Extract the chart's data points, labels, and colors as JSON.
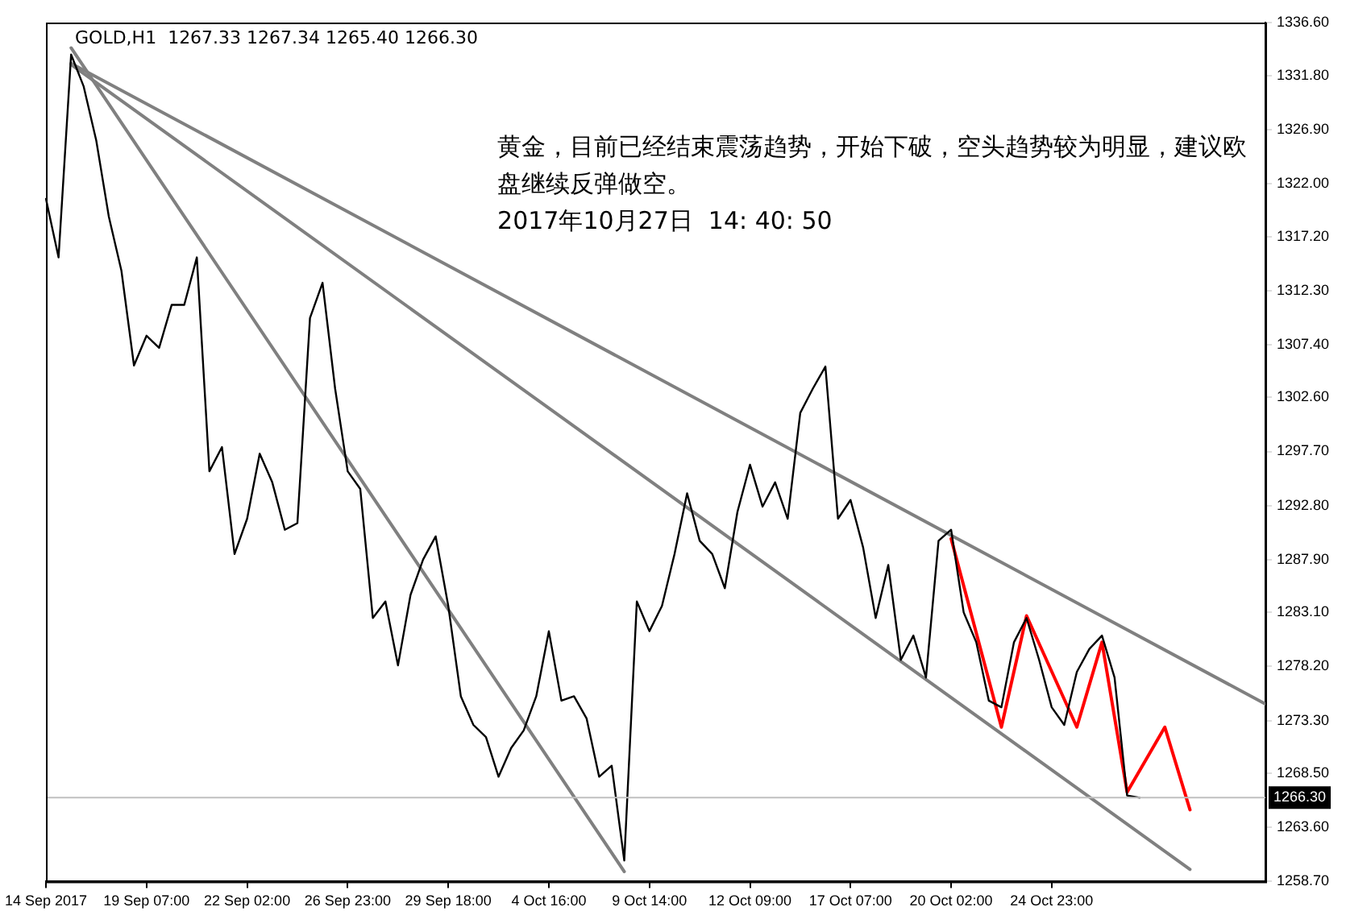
{
  "chart_data": {
    "type": "line",
    "title": "GOLD,H1  1267.33 1267.34 1265.40 1266.30",
    "annotations": [
      "黄金，目前已经结束震荡趋势，开始下破，空头趋势较为明显，建议欧盘继续反弹做空。",
      "2017年10月27日  14: 40: 50"
    ],
    "categories": [
      "14 Sep 2017",
      null,
      null,
      null,
      null,
      null,
      null,
      null,
      "19 Sep 07:00",
      null,
      null,
      null,
      null,
      null,
      null,
      null,
      "22 Sep 02:00",
      null,
      null,
      null,
      null,
      null,
      null,
      null,
      "26 Sep 23:00",
      null,
      null,
      null,
      null,
      null,
      null,
      null,
      "29 Sep 18:00",
      null,
      null,
      null,
      null,
      null,
      null,
      null,
      "4 Oct 16:00",
      null,
      null,
      null,
      null,
      null,
      null,
      null,
      "9 Oct 14:00",
      null,
      null,
      null,
      null,
      null,
      null,
      null,
      "12 Oct 09:00",
      null,
      null,
      null,
      null,
      null,
      null,
      null,
      "17 Oct 07:00",
      null,
      null,
      null,
      null,
      null,
      null,
      null,
      "20 Oct 02:00",
      null,
      null,
      null,
      null,
      null,
      null,
      null,
      "24 Oct 23:00",
      null,
      null,
      null,
      null,
      null,
      null,
      null,
      null,
      null,
      null,
      null,
      null,
      null,
      null,
      null,
      null,
      null
    ],
    "ylim": [
      1258.7,
      1336.6
    ],
    "yticks": [
      {
        "value": 1258.7,
        "label": "1258.70"
      },
      {
        "value": 1263.6,
        "label": "1263.60"
      },
      {
        "value": 1268.5,
        "label": "1268.50"
      },
      {
        "value": 1273.3,
        "label": "1273.30"
      },
      {
        "value": 1278.2,
        "label": "1278.20"
      },
      {
        "value": 1283.1,
        "label": "1283.10"
      },
      {
        "value": 1287.9,
        "label": "1287.90"
      },
      {
        "value": 1292.8,
        "label": "1292.80"
      },
      {
        "value": 1297.7,
        "label": "1297.70"
      },
      {
        "value": 1302.6,
        "label": "1302.60"
      },
      {
        "value": 1307.4,
        "label": "1307.40"
      },
      {
        "value": 1312.3,
        "label": "1312.30"
      },
      {
        "value": 1317.2,
        "label": "1317.20"
      },
      {
        "value": 1322.0,
        "label": "1322.00"
      },
      {
        "value": 1326.9,
        "label": "1326.90"
      },
      {
        "value": 1331.8,
        "label": "1331.80"
      },
      {
        "value": 1336.6,
        "label": "1336.60"
      }
    ],
    "grid": false,
    "legend": false,
    "ref_lines": [
      {
        "axis": "y",
        "value": 1266.3,
        "label": "1266.30",
        "color": "#c0c0c0"
      }
    ],
    "series": [
      {
        "color": "#000000",
        "values": [
          1320.6,
          1315.3,
          1333.7,
          1330.8,
          1325.9,
          1319.0,
          1314.1,
          1305.5,
          1308.2,
          1307.1,
          1311.0,
          1311.0,
          1315.3,
          1295.9,
          1298.1,
          1288.4,
          1291.6,
          1297.5,
          1294.9,
          1290.6,
          1291.2,
          1309.8,
          1313.0,
          1303.4,
          1295.9,
          1294.3,
          1282.6,
          1284.1,
          1278.3,
          1284.7,
          1287.9,
          1290.0,
          1283.7,
          1275.5,
          1272.9,
          1271.8,
          1268.2,
          1270.8,
          1272.4,
          1275.5,
          1281.4,
          1275.1,
          1275.5,
          1273.5,
          1268.2,
          1269.2,
          1260.6,
          1284.1,
          1281.4,
          1283.7,
          1288.4,
          1293.9,
          1289.6,
          1288.4,
          1285.3,
          1292.2,
          1296.5,
          1292.7,
          1294.9,
          1291.6,
          1301.2,
          1303.4,
          1305.4,
          1291.6,
          1293.3,
          1289.0,
          1282.6,
          1287.4,
          1278.8,
          1281.0,
          1277.2,
          1289.6,
          1290.6,
          1283.1,
          1280.4,
          1275.1,
          1274.5,
          1280.4,
          1282.6,
          1278.8,
          1274.5,
          1272.9,
          1277.7,
          1279.8,
          1281.0,
          1277.2,
          1266.5,
          1266.3,
          null,
          null,
          null,
          null,
          null,
          null,
          null,
          null,
          null,
          null
        ]
      },
      {
        "color": "#808080",
        "values": [
          null,
          null,
          1332.9,
          null,
          null,
          null,
          null,
          null,
          null,
          null,
          null,
          null,
          null,
          null,
          null,
          null,
          null,
          null,
          null,
          null,
          null,
          null,
          null,
          null,
          null,
          null,
          null,
          null,
          null,
          null,
          null,
          null,
          null,
          null,
          null,
          null,
          null,
          null,
          null,
          null,
          null,
          null,
          null,
          null,
          null,
          null,
          null,
          null,
          null,
          null,
          null,
          null,
          null,
          null,
          null,
          null,
          null,
          null,
          null,
          null,
          null,
          null,
          null,
          null,
          null,
          null,
          null,
          null,
          null,
          null,
          null,
          null,
          null,
          null,
          null,
          null,
          null,
          null,
          null,
          null,
          null,
          null,
          null,
          null,
          null,
          null,
          null,
          null,
          null,
          null,
          null,
          null,
          null,
          null,
          null,
          null,
          null,
          1274.8
        ]
      },
      {
        "color": "#808080",
        "values": [
          null,
          null,
          1332.8,
          null,
          null,
          null,
          null,
          null,
          null,
          null,
          null,
          null,
          null,
          null,
          null,
          null,
          null,
          null,
          null,
          null,
          null,
          null,
          null,
          null,
          null,
          null,
          null,
          null,
          null,
          null,
          null,
          null,
          null,
          null,
          null,
          null,
          null,
          null,
          null,
          null,
          null,
          null,
          null,
          null,
          null,
          null,
          null,
          null,
          null,
          null,
          null,
          null,
          null,
          null,
          null,
          null,
          null,
          null,
          null,
          null,
          null,
          null,
          null,
          null,
          null,
          null,
          null,
          null,
          null,
          null,
          null,
          null,
          null,
          null,
          null,
          null,
          null,
          null,
          null,
          null,
          null,
          null,
          null,
          null,
          null,
          null,
          null,
          null,
          null,
          null,
          null,
          1259.8,
          null,
          null,
          null,
          null,
          null,
          null
        ]
      },
      {
        "color": "#808080",
        "values": [
          null,
          null,
          1334.3,
          null,
          null,
          null,
          null,
          null,
          null,
          null,
          null,
          null,
          null,
          null,
          null,
          null,
          null,
          null,
          null,
          null,
          null,
          null,
          null,
          null,
          null,
          null,
          null,
          null,
          null,
          null,
          null,
          null,
          null,
          null,
          null,
          null,
          null,
          null,
          null,
          null,
          null,
          null,
          null,
          null,
          null,
          null,
          1259.6,
          null,
          null,
          null,
          null,
          null,
          null,
          null,
          null,
          null,
          null,
          null,
          null,
          null,
          null,
          null,
          null,
          null,
          null,
          null,
          null,
          null,
          null,
          null,
          null,
          null,
          null,
          null,
          null,
          null,
          null,
          null,
          null,
          null,
          null,
          null,
          null,
          null,
          null,
          null,
          null,
          null,
          null,
          null,
          null,
          null,
          null,
          null,
          null,
          null,
          null,
          null
        ]
      },
      {
        "color": "#ff0000",
        "values": [
          null,
          null,
          null,
          null,
          null,
          null,
          null,
          null,
          null,
          null,
          null,
          null,
          null,
          null,
          null,
          null,
          null,
          null,
          null,
          null,
          null,
          null,
          null,
          null,
          null,
          null,
          null,
          null,
          null,
          null,
          null,
          null,
          null,
          null,
          null,
          null,
          null,
          null,
          null,
          null,
          null,
          null,
          null,
          null,
          null,
          null,
          null,
          null,
          null,
          null,
          null,
          null,
          null,
          null,
          null,
          null,
          null,
          null,
          null,
          null,
          null,
          null,
          null,
          null,
          null,
          null,
          null,
          null,
          null,
          null,
          null,
          null,
          1289.8,
          null,
          null,
          null,
          1272.7,
          null,
          1282.8,
          null,
          null,
          null,
          1272.7,
          null,
          1280.4,
          null,
          1266.8,
          null,
          null,
          1272.7,
          null,
          1265.2,
          null,
          null,
          null,
          null,
          null,
          null
        ]
      }
    ]
  }
}
